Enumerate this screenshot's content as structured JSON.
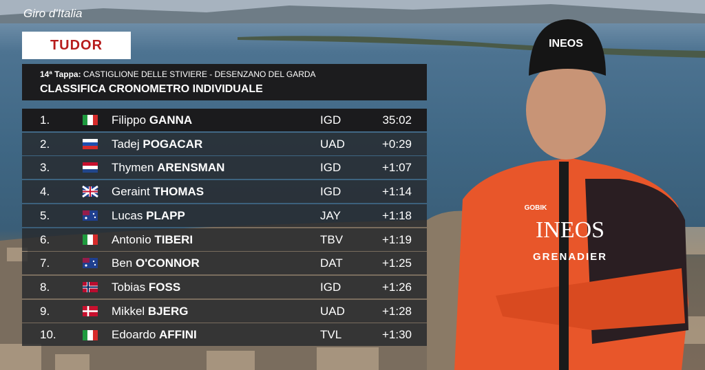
{
  "broadcast": {
    "logo": "Giro d'Italia",
    "sponsor": "TUDOR"
  },
  "header": {
    "stage_label": "14ª Tappa:",
    "stage_route": "CASTIGLIONE DELLE STIVIERE - DESENZANO DEL GARDA",
    "title": "CLASSIFICA CRONOMETRO INDIVIDUALE"
  },
  "table": {
    "rows": [
      {
        "rank": "1.",
        "first_name": "Filippo",
        "last_name": "GANNA",
        "team": "IGD",
        "time": "35:02"
      },
      {
        "rank": "2.",
        "first_name": "Tadej",
        "last_name": "POGACAR",
        "team": "UAD",
        "time": "+0:29"
      },
      {
        "rank": "3.",
        "first_name": "Thymen",
        "last_name": "ARENSMAN",
        "team": "IGD",
        "time": "+1:07"
      },
      {
        "rank": "4.",
        "first_name": "Geraint",
        "last_name": "THOMAS",
        "team": "IGD",
        "time": "+1:14"
      },
      {
        "rank": "5.",
        "first_name": "Lucas",
        "last_name": "PLAPP",
        "team": "JAY",
        "time": "+1:18"
      },
      {
        "rank": "6.",
        "first_name": "Antonio",
        "last_name": "TIBERI",
        "team": "TBV",
        "time": "+1:19"
      },
      {
        "rank": "7.",
        "first_name": "Ben",
        "last_name": "O'CONNOR",
        "team": "DAT",
        "time": "+1:25"
      },
      {
        "rank": "8.",
        "first_name": "Tobias",
        "last_name": "FOSS",
        "team": "IGD",
        "time": "+1:26"
      },
      {
        "rank": "9.",
        "first_name": "Mikkel",
        "last_name": "BJERG",
        "team": "UAD",
        "time": "+1:28"
      },
      {
        "rank": "10.",
        "first_name": "Edoardo",
        "last_name": "AFFINI",
        "team": "TVL",
        "time": "+1:30"
      }
    ]
  },
  "photo": {
    "jersey_brand": "INEOS",
    "jersey_sponsor": "GRENADIER",
    "jersey_kit": "GOBIK"
  }
}
